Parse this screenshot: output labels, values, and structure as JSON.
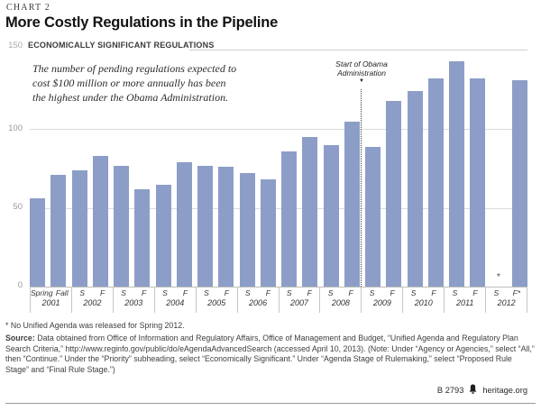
{
  "header": {
    "kicker": "CHART 2",
    "title": "More Costly Regulations in the Pipeline"
  },
  "chart_data": {
    "type": "bar",
    "title": "More Costly Regulations in the Pipeline",
    "series_label": "ECONOMICALLY SIGNIFICANT REGULATIONS",
    "bar_color": "#8C9EC7",
    "ylim": [
      0,
      150
    ],
    "grid": "horizontal",
    "yaxis": {
      "top_tick": "150",
      "ticks": [
        "100",
        "50",
        "0"
      ]
    },
    "categories": [
      "Spring 2001",
      "Fall 2001",
      "Spring 2002",
      "Fall 2002",
      "Spring 2003",
      "Fall 2003",
      "Spring 2004",
      "Fall 2004",
      "Spring 2005",
      "Fall 2005",
      "Spring 2006",
      "Fall 2006",
      "Spring 2007",
      "Fall 2007",
      "Spring 2008",
      "Fall 2008",
      "Spring 2009",
      "Fall 2009",
      "Spring 2010",
      "Fall 2010",
      "Spring 2011",
      "Fall 2011",
      "Spring 2012",
      "Fall 2012"
    ],
    "values": [
      56,
      71,
      74,
      83,
      77,
      62,
      65,
      79,
      77,
      76,
      72,
      68,
      86,
      95,
      90,
      105,
      89,
      118,
      124,
      132,
      143,
      132,
      null,
      131
    ],
    "missing_marker": "*",
    "xgroups": [
      {
        "year": "2001",
        "labels": [
          "Spring",
          "Fall"
        ]
      },
      {
        "year": "2002",
        "labels": [
          "S",
          "F"
        ]
      },
      {
        "year": "2003",
        "labels": [
          "S",
          "F"
        ]
      },
      {
        "year": "2004",
        "labels": [
          "S",
          "F"
        ]
      },
      {
        "year": "2005",
        "labels": [
          "S",
          "F"
        ]
      },
      {
        "year": "2006",
        "labels": [
          "S",
          "F"
        ]
      },
      {
        "year": "2007",
        "labels": [
          "S",
          "F"
        ]
      },
      {
        "year": "2008",
        "labels": [
          "S",
          "F"
        ]
      },
      {
        "year": "2009",
        "labels": [
          "S",
          "F"
        ]
      },
      {
        "year": "2010",
        "labels": [
          "S",
          "F"
        ]
      },
      {
        "year": "2011",
        "labels": [
          "S",
          "F"
        ]
      },
      {
        "year": "2012",
        "labels": [
          "S",
          "F*"
        ]
      }
    ],
    "annotation": {
      "lines": [
        "The number of pending regulations expected to",
        "cost $100 million or more annually has been",
        "the highest under the Obama Administration."
      ]
    },
    "event_marker": {
      "lines": [
        "Start of Obama",
        "Administration"
      ],
      "arrow": "▼",
      "between": [
        "Fall 2008",
        "Spring 2009"
      ]
    }
  },
  "footnote": "* No Unified Agenda was released for Spring 2012.",
  "source": {
    "label": "Source:",
    "text": "Data obtained from Office of Information and Regulatory Affairs, Office of Management and Budget, “Unified Agenda and Regulatory Plan Search Criteria,” http://www.reginfo.gov/public/do/eAgendaAdvancedSearch (accessed April 10, 2013). (Note: Under “Agency or Agencies,” select “All,” then “Continue.” Under the “Priority” subheading, select “Economically Significant.” Under “Agenda Stage of Rulemaking,” select “Proposed Rule Stage” and “Final Rule Stage.”)"
  },
  "footer": {
    "doc_id": "B 2793",
    "site": "heritage.org"
  }
}
